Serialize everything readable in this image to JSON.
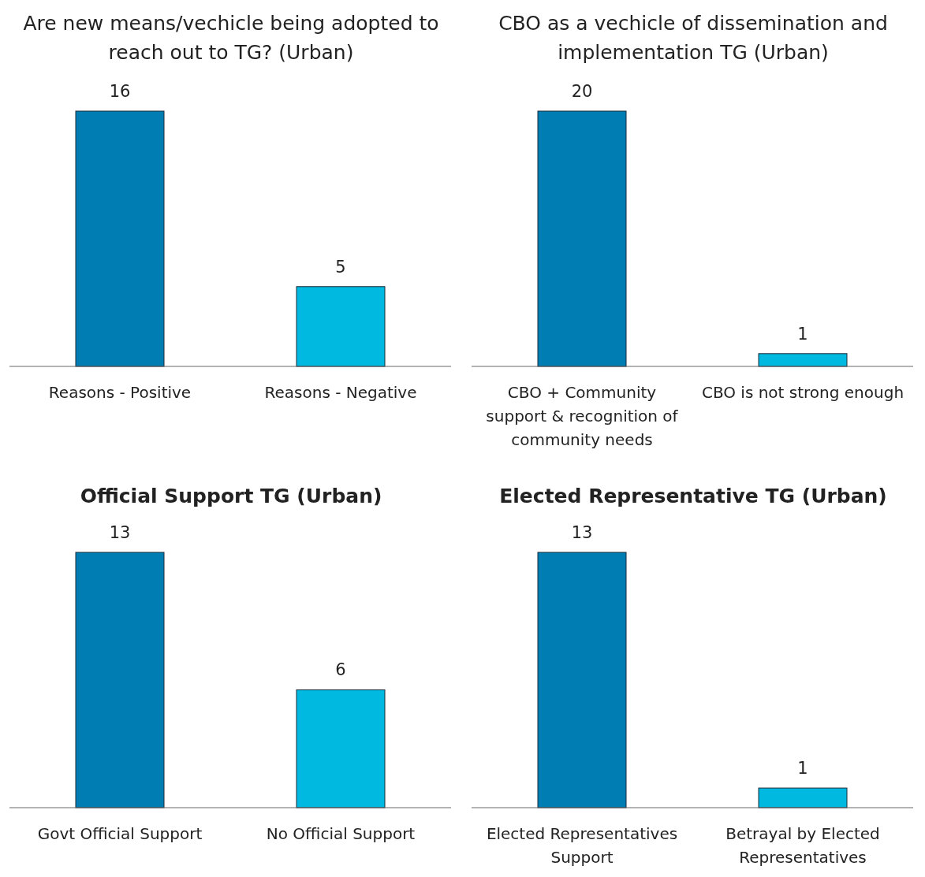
{
  "chart_data": [
    {
      "type": "bar",
      "title": "Are new means/vechicle being adopted to reach out to TG? (Urban)",
      "categories": [
        "Reasons - Positive",
        "Reasons - Negative"
      ],
      "values": [
        16,
        5
      ],
      "colors": [
        "#007db3",
        "#00b9e1"
      ],
      "data_labels": true
    },
    {
      "type": "bar",
      "title": "CBO as a vechicle of dissemination and implementation TG (Urban)",
      "categories": [
        "CBO + Community support & recognition of community needs",
        "CBO is not strong enough"
      ],
      "values": [
        20,
        1
      ],
      "colors": [
        "#007db3",
        "#00b9e1"
      ],
      "data_labels": true
    },
    {
      "type": "bar",
      "title": "Official Support TG (Urban)",
      "categories": [
        "Govt Official Support",
        "No Official Support"
      ],
      "values": [
        13,
        6
      ],
      "colors": [
        "#007db3",
        "#00b9e1"
      ],
      "data_labels": true
    },
    {
      "type": "bar",
      "title": "Elected Representative TG (Urban)",
      "categories": [
        "Elected Representatives Support",
        "Betrayal by Elected Representatives"
      ],
      "values": [
        13,
        1
      ],
      "colors": [
        "#007db3",
        "#00b9e1"
      ],
      "data_labels": true
    }
  ]
}
